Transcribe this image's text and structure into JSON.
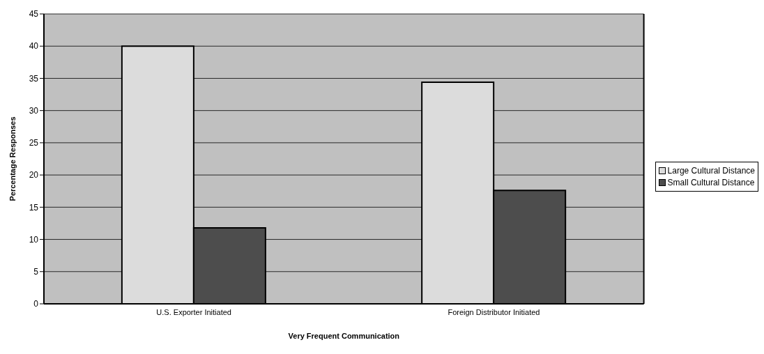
{
  "chart_data": {
    "type": "bar",
    "xlabel": "Very Frequent Communication",
    "ylabel": "Percentage Responses",
    "categories": [
      "U.S. Exporter Initiated",
      "Foreign Distributor Initiated"
    ],
    "series": [
      {
        "name": "Large Cultural Distance",
        "color": "#dcdcdc",
        "values": [
          40,
          34.4
        ]
      },
      {
        "name": "Small Cultural Distance",
        "color": "#4d4d4d",
        "values": [
          11.8,
          17.6
        ]
      }
    ],
    "ylim": [
      0,
      45
    ],
    "yticks": [
      0,
      5,
      10,
      15,
      20,
      25,
      30,
      35,
      40,
      45
    ],
    "grid": "y",
    "legend": "right"
  }
}
